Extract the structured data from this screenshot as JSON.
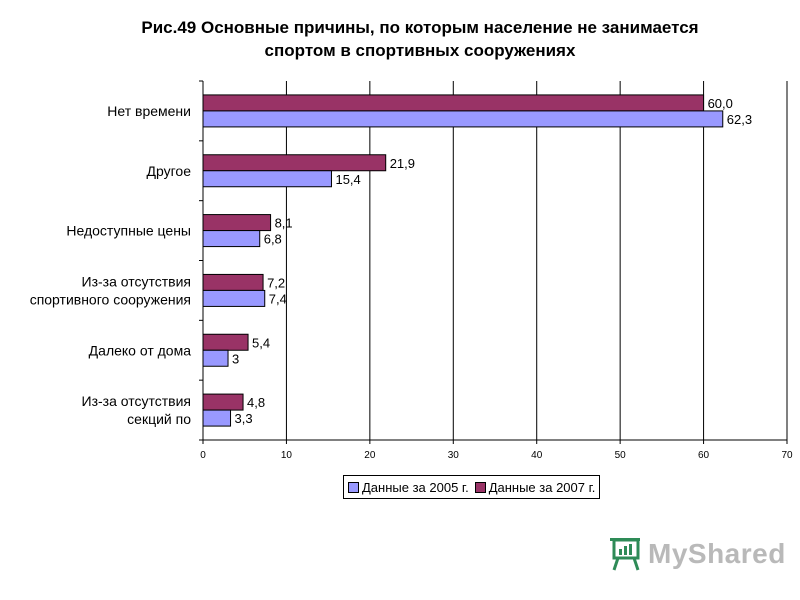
{
  "chart_data": {
    "type": "bar",
    "orientation": "horizontal",
    "title_lines": [
      "Рис.49   Основные причины, по которым население не занимается",
      "спортом в спортивных сооружениях"
    ],
    "categories": [
      [
        "Нет времени"
      ],
      [
        "Другое"
      ],
      [
        "Недоступные цены"
      ],
      [
        "Из-за отсутствия",
        "спортивного сооружения"
      ],
      [
        "Далеко от дома"
      ],
      [
        "Из-за отсутствия",
        "секций по"
      ]
    ],
    "series": [
      {
        "name": "Данные за 2007 г.",
        "color": "#993366",
        "values": [
          60.0,
          21.9,
          8.1,
          7.2,
          5.4,
          4.8
        ],
        "labels": [
          "60,0",
          "21,9",
          "8,1",
          "7,2",
          "5,4",
          "4,8"
        ]
      },
      {
        "name": "Данные за 2005 г.",
        "color": "#9999ff",
        "values": [
          62.3,
          15.4,
          6.8,
          7.4,
          3,
          3.3
        ],
        "labels": [
          "62,3",
          "15,4",
          "6,8",
          "7,4",
          "3",
          "3,3"
        ]
      }
    ],
    "legend_order": [
      "Данные за 2005 г.",
      "Данные за 2007 г."
    ],
    "xlim": [
      0,
      70
    ],
    "xticks": [
      0,
      10,
      20,
      30,
      40,
      50,
      60,
      70
    ],
    "grid": true,
    "legend_position": "bottom"
  },
  "watermark": {
    "text": "MyShared",
    "icon": "presentation-board-icon"
  }
}
